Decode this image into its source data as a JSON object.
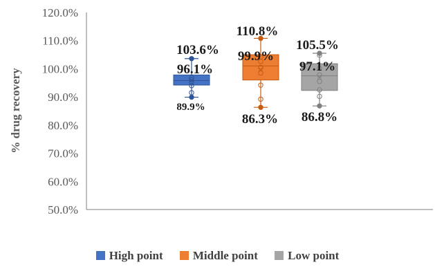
{
  "chart_data": {
    "type": "box",
    "title": "",
    "xlabel": "",
    "ylabel": "% drug recovery",
    "ylim": [
      50,
      120
    ],
    "yticks": [
      {
        "value": 50,
        "label": "50.0%"
      },
      {
        "value": 60,
        "label": "60.0%"
      },
      {
        "value": 70,
        "label": "70.0%"
      },
      {
        "value": 80,
        "label": "80.0%"
      },
      {
        "value": 90,
        "label": "90.0%"
      },
      {
        "value": 100,
        "label": "100.0%"
      },
      {
        "value": 110,
        "label": "110.0%"
      },
      {
        "value": 120,
        "label": "120.0%"
      }
    ],
    "grid": false,
    "legend_position": "bottom",
    "series": [
      {
        "name": "High point",
        "color": "#4472c4",
        "min": 89.9,
        "q1": 94.2,
        "median": 95.8,
        "mean": 96.1,
        "q3": 97.8,
        "max": 103.6,
        "points": [
          89.9,
          91.5,
          94.0,
          95.2,
          96.1,
          96.8,
          103.6
        ],
        "labels": {
          "max": "103.6%",
          "mean": "96.1%",
          "min": "89.9%"
        }
      },
      {
        "name": "Middle point",
        "color": "#ed7d31",
        "min": 86.3,
        "q1": 96.0,
        "median": 101.0,
        "mean": 99.9,
        "q3": 105.0,
        "max": 110.8,
        "points": [
          86.3,
          89.2,
          94.2,
          98.5,
          100.5,
          102.6,
          104.2,
          110.8
        ],
        "labels": {
          "max": "110.8%",
          "mean": "99.9%",
          "min": "86.3%"
        }
      },
      {
        "name": "Low point",
        "color": "#a5a5a5",
        "min": 86.8,
        "q1": 92.3,
        "median": 97.5,
        "mean": 97.1,
        "q3": 101.8,
        "max": 105.5,
        "points": [
          86.8,
          90.2,
          92.5,
          95.5,
          97.8,
          100.2,
          104.8,
          105.5
        ],
        "labels": {
          "max": "105.5%",
          "mean": "97.1%",
          "min": "86.8%"
        }
      }
    ]
  }
}
